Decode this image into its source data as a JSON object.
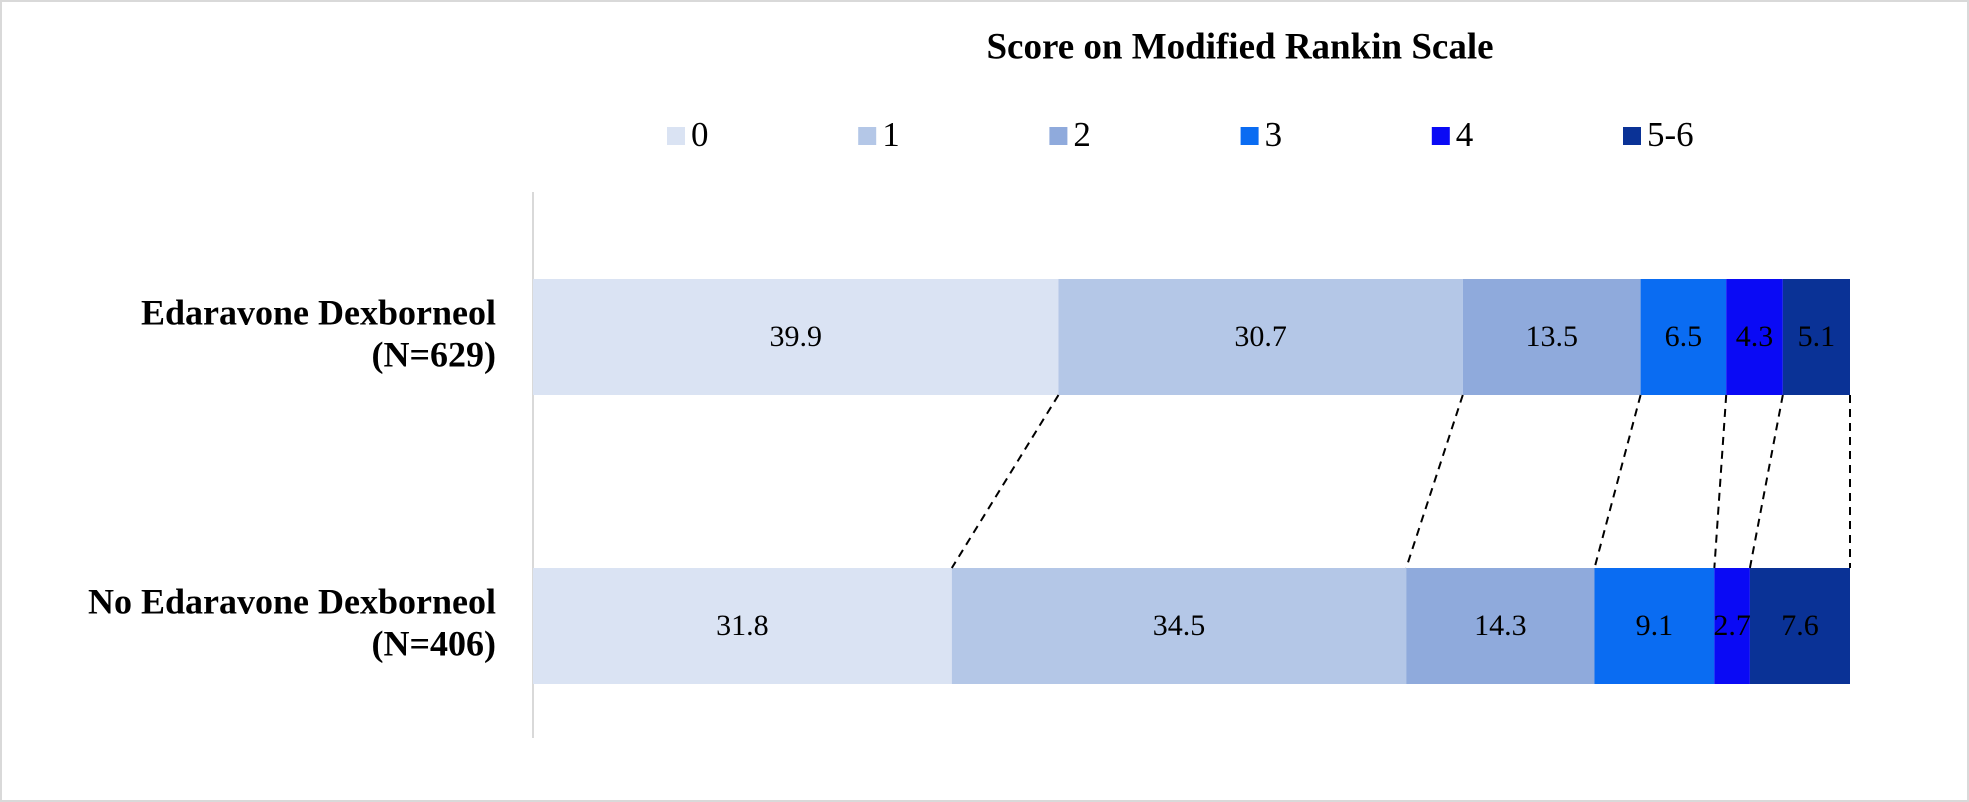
{
  "chart_data": {
    "type": "stacked-bar-horizontal",
    "title": "Score on Modified Rankin Scale",
    "categories": [
      [
        "Edaravone Dexborneol",
        "(N=629)"
      ],
      [
        "No Edaravone Dexborneol",
        "(N=406)"
      ]
    ],
    "series": [
      {
        "name": "0",
        "color": "#dae3f3",
        "label_color": "#000000",
        "values": [
          39.9,
          31.8
        ]
      },
      {
        "name": "1",
        "color": "#b4c7e7",
        "label_color": "#000000",
        "values": [
          30.7,
          34.5
        ]
      },
      {
        "name": "2",
        "color": "#8faadc",
        "label_color": "#000000",
        "values": [
          13.5,
          14.3
        ]
      },
      {
        "name": "3",
        "color": "#0a6cf2",
        "label_color": "#ffffff",
        "values": [
          6.5,
          9.1
        ]
      },
      {
        "name": "4",
        "color": "#0a0af5",
        "label_color": "#ffffff",
        "values": [
          4.3,
          2.7
        ]
      },
      {
        "name": "5-6",
        "color": "#0a3296",
        "label_color": "#ffffff",
        "values": [
          5.1,
          7.6
        ]
      }
    ],
    "xlim": [
      0,
      100
    ],
    "connectors": true
  }
}
